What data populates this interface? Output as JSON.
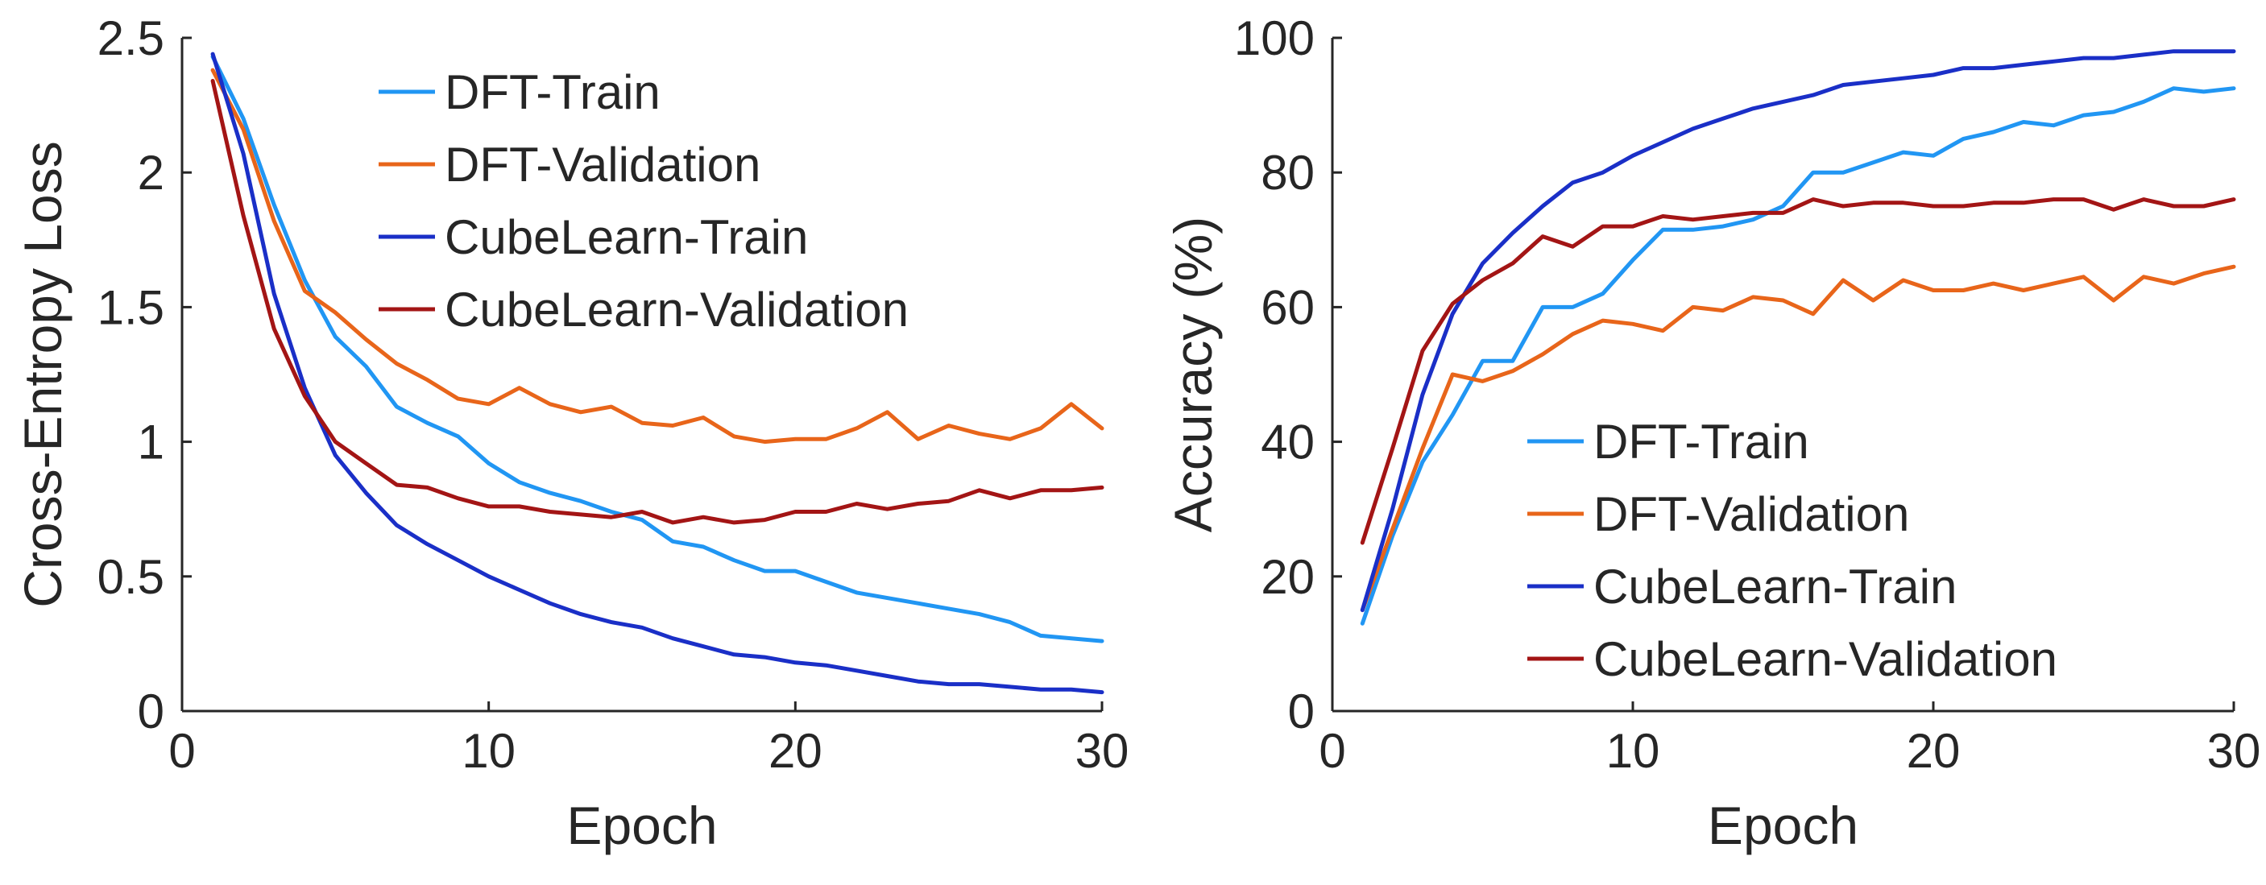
{
  "chart_data": [
    {
      "type": "line",
      "title": "",
      "xlabel": "Epoch",
      "ylabel": "Cross-Entropy Loss",
      "xlim": [
        0,
        30
      ],
      "ylim": [
        0,
        2.5
      ],
      "x_ticks": [
        0,
        10,
        20,
        30
      ],
      "x_tick_labels": [
        "0",
        "10",
        "20",
        "30"
      ],
      "y_ticks": [
        0,
        0.5,
        1,
        1.5,
        2,
        2.5
      ],
      "y_tick_labels": [
        "0",
        "0.5",
        "1",
        "1.5",
        "2",
        "2.5"
      ],
      "grid": false,
      "legend_position": "top-right",
      "x": [
        1,
        2,
        3,
        4,
        5,
        6,
        7,
        8,
        9,
        10,
        11,
        12,
        13,
        14,
        15,
        16,
        17,
        18,
        19,
        20,
        21,
        22,
        23,
        24,
        25,
        26,
        27,
        28,
        29,
        30
      ],
      "series": [
        {
          "name": "DFT-Train",
          "color": "#2196f3",
          "values": [
            2.43,
            2.2,
            1.88,
            1.6,
            1.39,
            1.28,
            1.13,
            1.07,
            1.02,
            0.92,
            0.85,
            0.81,
            0.78,
            0.74,
            0.71,
            0.63,
            0.61,
            0.56,
            0.52,
            0.52,
            0.48,
            0.44,
            0.42,
            0.4,
            0.38,
            0.36,
            0.33,
            0.28,
            0.27,
            0.26
          ]
        },
        {
          "name": "DFT-Validation",
          "color": "#e8651a",
          "values": [
            2.38,
            2.16,
            1.82,
            1.56,
            1.48,
            1.38,
            1.29,
            1.23,
            1.16,
            1.14,
            1.2,
            1.14,
            1.11,
            1.13,
            1.07,
            1.06,
            1.09,
            1.02,
            1.0,
            1.01,
            1.01,
            1.05,
            1.11,
            1.01,
            1.06,
            1.03,
            1.01,
            1.05,
            1.14,
            1.05
          ]
        },
        {
          "name": "CubeLearn-Train",
          "color": "#1a2fc7",
          "values": [
            2.44,
            2.07,
            1.55,
            1.2,
            0.95,
            0.81,
            0.69,
            0.62,
            0.56,
            0.5,
            0.45,
            0.4,
            0.36,
            0.33,
            0.31,
            0.27,
            0.24,
            0.21,
            0.2,
            0.18,
            0.17,
            0.15,
            0.13,
            0.11,
            0.1,
            0.1,
            0.09,
            0.08,
            0.08,
            0.07
          ]
        },
        {
          "name": "CubeLearn-Validation",
          "color": "#a31515",
          "values": [
            2.34,
            1.84,
            1.42,
            1.17,
            1.0,
            0.92,
            0.84,
            0.83,
            0.79,
            0.76,
            0.76,
            0.74,
            0.73,
            0.72,
            0.74,
            0.7,
            0.72,
            0.7,
            0.71,
            0.74,
            0.74,
            0.77,
            0.75,
            0.77,
            0.78,
            0.82,
            0.79,
            0.82,
            0.82,
            0.83
          ]
        }
      ]
    },
    {
      "type": "line",
      "title": "",
      "xlabel": "Epoch",
      "ylabel": "Accuracy (%)",
      "xlim": [
        0,
        30
      ],
      "ylim": [
        0,
        100
      ],
      "x_ticks": [
        0,
        10,
        20,
        30
      ],
      "x_tick_labels": [
        "0",
        "10",
        "20",
        "30"
      ],
      "y_ticks": [
        0,
        20,
        40,
        60,
        80,
        100
      ],
      "y_tick_labels": [
        "0",
        "20",
        "40",
        "60",
        "80",
        "100"
      ],
      "grid": false,
      "legend_position": "bottom-right",
      "x": [
        1,
        2,
        3,
        4,
        5,
        6,
        7,
        8,
        9,
        10,
        11,
        12,
        13,
        14,
        15,
        16,
        17,
        18,
        19,
        20,
        21,
        22,
        23,
        24,
        25,
        26,
        27,
        28,
        29,
        30
      ],
      "series": [
        {
          "name": "DFT-Train",
          "color": "#2196f3",
          "values": [
            13,
            26,
            37,
            44,
            52,
            52,
            60,
            60,
            62,
            67,
            71.5,
            71.5,
            72,
            73,
            75,
            80,
            80,
            81.5,
            83,
            82.5,
            85,
            86,
            87.5,
            87,
            88.5,
            89,
            90.5,
            92.5,
            92,
            92.5
          ]
        },
        {
          "name": "DFT-Validation",
          "color": "#e8651a",
          "values": [
            15,
            27,
            39,
            50,
            49,
            50.5,
            53,
            56,
            58,
            57.5,
            56.5,
            60,
            59.5,
            61.5,
            61,
            59,
            64,
            61,
            64,
            62.5,
            62.5,
            63.5,
            62.5,
            63.5,
            64.5,
            61,
            64.5,
            63.5,
            65,
            66
          ]
        },
        {
          "name": "CubeLearn-Train",
          "color": "#1a2fc7",
          "values": [
            15,
            30,
            47,
            59,
            66.5,
            71,
            75,
            78.5,
            80,
            82.5,
            84.5,
            86.5,
            88,
            89.5,
            90.5,
            91.5,
            93,
            93.5,
            94,
            94.5,
            95.5,
            95.5,
            96,
            96.5,
            97,
            97,
            97.5,
            98,
            98,
            98
          ]
        },
        {
          "name": "CubeLearn-Validation",
          "color": "#a31515",
          "values": [
            25,
            39,
            53.5,
            60.5,
            64,
            66.5,
            70.5,
            69,
            72,
            72,
            73.5,
            73,
            73.5,
            74,
            74,
            76,
            75,
            75.5,
            75.5,
            75,
            75,
            75.5,
            75.5,
            76,
            76,
            74.5,
            76,
            75,
            75,
            76
          ]
        }
      ]
    }
  ]
}
